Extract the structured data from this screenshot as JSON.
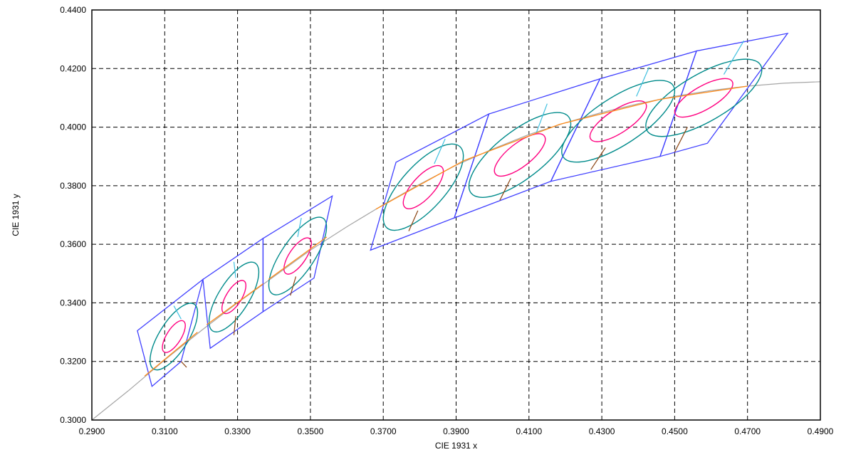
{
  "chart_data": {
    "type": "scatter",
    "title": "",
    "xlabel": "CIE 1931 x",
    "ylabel": "CIE 1931 y",
    "xlim": [
      0.29,
      0.49
    ],
    "ylim": [
      0.3,
      0.44
    ],
    "x_ticks": [
      "0.2900",
      "0.3100",
      "0.3300",
      "0.3500",
      "0.3700",
      "0.3900",
      "0.4100",
      "0.4300",
      "0.4500",
      "0.4700",
      "0.4900"
    ],
    "y_ticks": [
      "0.3000",
      "0.3200",
      "0.3400",
      "0.3600",
      "0.3800",
      "0.4000",
      "0.4200",
      "0.4400"
    ],
    "grid": true,
    "colors": {
      "planckian_locus": "#a6a6a6",
      "quadrangle": "#4040ff",
      "outer_ellipse": "#008b8b",
      "inner_ellipse": "#ff0080",
      "duv_up": "#40c0e0",
      "duv_down": "#8b4513",
      "locus_segment": "#ff8c1a"
    },
    "planckian_locus": [
      [
        0.29,
        0.3
      ],
      [
        0.3,
        0.31
      ],
      [
        0.31,
        0.3205
      ],
      [
        0.32,
        0.3305
      ],
      [
        0.33,
        0.34
      ],
      [
        0.34,
        0.349
      ],
      [
        0.35,
        0.358
      ],
      [
        0.36,
        0.366
      ],
      [
        0.37,
        0.3735
      ],
      [
        0.38,
        0.3805
      ],
      [
        0.39,
        0.387
      ],
      [
        0.4,
        0.3925
      ],
      [
        0.41,
        0.3975
      ],
      [
        0.42,
        0.4015
      ],
      [
        0.43,
        0.405
      ],
      [
        0.44,
        0.408
      ],
      [
        0.45,
        0.4105
      ],
      [
        0.46,
        0.4125
      ],
      [
        0.47,
        0.414
      ],
      [
        0.48,
        0.415
      ],
      [
        0.49,
        0.4155
      ]
    ],
    "quadrangles": [
      [
        [
          0.3025,
          0.3305
        ],
        [
          0.3205,
          0.348
        ],
        [
          0.3145,
          0.32
        ],
        [
          0.3065,
          0.3115
        ]
      ],
      [
        [
          0.3205,
          0.348
        ],
        [
          0.337,
          0.362
        ],
        [
          0.337,
          0.337
        ],
        [
          0.3225,
          0.3245
        ]
      ],
      [
        [
          0.337,
          0.362
        ],
        [
          0.356,
          0.3765
        ],
        [
          0.351,
          0.3485
        ],
        [
          0.337,
          0.337
        ]
      ],
      [
        [
          0.3665,
          0.358
        ],
        [
          0.3735,
          0.388
        ],
        [
          0.399,
          0.4045
        ],
        [
          0.3895,
          0.369
        ]
      ],
      [
        [
          0.3895,
          0.369
        ],
        [
          0.399,
          0.4045
        ],
        [
          0.4295,
          0.4165
        ],
        [
          0.416,
          0.3815
        ]
      ],
      [
        [
          0.416,
          0.3815
        ],
        [
          0.4295,
          0.4165
        ],
        [
          0.456,
          0.426
        ],
        [
          0.446,
          0.39
        ]
      ],
      [
        [
          0.446,
          0.39
        ],
        [
          0.456,
          0.426
        ],
        [
          0.481,
          0.432
        ],
        [
          0.459,
          0.3945
        ]
      ]
    ],
    "ellipses": [
      {
        "cx": 0.3125,
        "cy": 0.3285,
        "outer_a": 0.0105,
        "outer_b": 0.004,
        "inner_a": 0.005,
        "inner_b": 0.002,
        "angle": 58
      },
      {
        "cx": 0.329,
        "cy": 0.342,
        "outer_a": 0.011,
        "outer_b": 0.0042,
        "inner_a": 0.0052,
        "inner_b": 0.0021,
        "angle": 58
      },
      {
        "cx": 0.3465,
        "cy": 0.356,
        "outer_a": 0.0125,
        "outer_b": 0.0045,
        "inner_a": 0.0058,
        "inner_b": 0.0023,
        "angle": 56
      },
      {
        "cx": 0.381,
        "cy": 0.3795,
        "outer_a": 0.015,
        "outer_b": 0.006,
        "inner_a": 0.0075,
        "inner_b": 0.003,
        "angle": 48
      },
      {
        "cx": 0.4075,
        "cy": 0.3905,
        "outer_a": 0.017,
        "outer_b": 0.0065,
        "inner_a": 0.0085,
        "inner_b": 0.0032,
        "angle": 38
      },
      {
        "cx": 0.4345,
        "cy": 0.402,
        "outer_a": 0.018,
        "outer_b": 0.0065,
        "inner_a": 0.009,
        "inner_b": 0.0032,
        "angle": 33
      },
      {
        "cx": 0.458,
        "cy": 0.41,
        "outer_a": 0.018,
        "outer_b": 0.0065,
        "inner_a": 0.009,
        "inner_b": 0.0032,
        "angle": 30
      }
    ],
    "duv_lines": [
      {
        "up": [
          [
            0.3145,
            0.3345
          ],
          [
            0.3125,
            0.339
          ]
        ],
        "down": [
          [
            0.3145,
            0.32
          ],
          [
            0.316,
            0.318
          ]
        ]
      },
      {
        "up": [
          [
            0.3295,
            0.3485
          ],
          [
            0.329,
            0.354
          ]
        ],
        "down": [
          [
            0.3295,
            0.3355
          ],
          [
            0.329,
            0.329
          ]
        ]
      },
      {
        "up": [
          [
            0.3465,
            0.3625
          ],
          [
            0.3475,
            0.369
          ]
        ],
        "down": [
          [
            0.346,
            0.349
          ],
          [
            0.3445,
            0.3425
          ]
        ]
      },
      {
        "up": [
          [
            0.384,
            0.3875
          ],
          [
            0.387,
            0.396
          ]
        ],
        "down": [
          [
            0.3795,
            0.3715
          ],
          [
            0.377,
            0.3645
          ]
        ]
      },
      {
        "up": [
          [
            0.412,
            0.398
          ],
          [
            0.415,
            0.408
          ]
        ],
        "down": [
          [
            0.405,
            0.3825
          ],
          [
            0.402,
            0.375
          ]
        ]
      },
      {
        "up": [
          [
            0.4395,
            0.4105
          ],
          [
            0.443,
            0.4205
          ]
        ],
        "down": [
          [
            0.431,
            0.393
          ],
          [
            0.427,
            0.3855
          ]
        ]
      },
      {
        "up": [
          [
            0.4635,
            0.418
          ],
          [
            0.469,
            0.4295
          ]
        ],
        "down": [
          [
            0.4535,
            0.4
          ],
          [
            0.45,
            0.3915
          ]
        ]
      }
    ],
    "locus_segments": [
      [
        [
          0.3045,
          0.315
        ],
        [
          0.319,
          0.33
        ]
      ],
      [
        [
          0.3215,
          0.3325
        ],
        [
          0.337,
          0.3465
        ]
      ],
      [
        [
          0.3385,
          0.348
        ],
        [
          0.3545,
          0.3625
        ]
      ],
      [
        [
          0.368,
          0.372
        ],
        [
          0.392,
          0.3885
        ]
      ],
      [
        [
          0.392,
          0.3885
        ],
        [
          0.4185,
          0.401
        ]
      ],
      [
        [
          0.4185,
          0.401
        ],
        [
          0.446,
          0.4095
        ]
      ],
      [
        [
          0.446,
          0.4095
        ],
        [
          0.47,
          0.414
        ]
      ]
    ]
  }
}
